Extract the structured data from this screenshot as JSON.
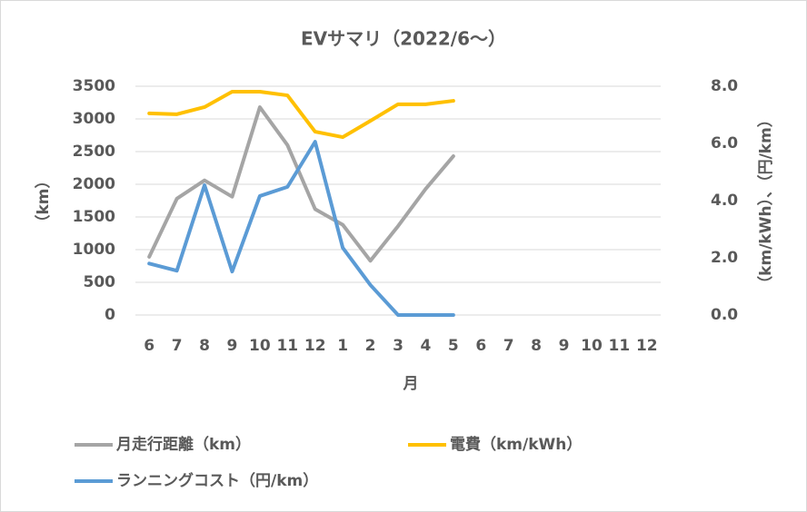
{
  "chart_data": {
    "type": "line",
    "title": "EVサマリ（2022/6～）",
    "categories": [
      "6",
      "7",
      "8",
      "9",
      "10",
      "11",
      "12",
      "1",
      "2",
      "3",
      "4",
      "5",
      "6",
      "7",
      "8",
      "9",
      "10",
      "11",
      "12"
    ],
    "x_label": "月",
    "y_label": "（km）",
    "y2_label": "（km/kWh）、（円/km）",
    "ylim": [
      0,
      3500
    ],
    "yticks": [
      0,
      500,
      1000,
      1500,
      2000,
      2500,
      3000,
      3500
    ],
    "y2lim": [
      0,
      8
    ],
    "y2ticks": [
      {
        "value": 0,
        "label": "0.0"
      },
      {
        "value": 2,
        "label": "2.0"
      },
      {
        "value": 4,
        "label": "4.0"
      },
      {
        "value": 6,
        "label": "6.0"
      },
      {
        "value": 8,
        "label": "8.0"
      }
    ],
    "grid": true,
    "legend": "bottom",
    "series": [
      {
        "name": "月走行距離（km）",
        "color": "#a5a5a5",
        "values": [
          890,
          1780,
          2060,
          1810,
          3180,
          2600,
          1620,
          1380,
          830,
          1360,
          1930,
          2430,
          null,
          null,
          null,
          null,
          null,
          null,
          null
        ]
      },
      {
        "name": "電費（km/kWh）",
        "color": "#ffc000",
        "axis": "y2",
        "values": [
          7.05,
          7.02,
          7.27,
          7.81,
          7.81,
          7.68,
          6.41,
          6.22,
          6.79,
          7.37,
          7.37,
          7.49,
          null,
          null,
          null,
          null,
          null,
          null,
          null
        ]
      },
      {
        "name": "ランニングコスト（円/km）",
        "color": "#5b9bd5",
        "axis": "y2",
        "values": [
          1.8,
          1.55,
          4.54,
          1.52,
          4.16,
          4.48,
          6.06,
          2.35,
          1.05,
          0,
          0,
          0,
          null,
          null,
          null,
          null,
          null,
          null,
          null
        ]
      }
    ]
  }
}
